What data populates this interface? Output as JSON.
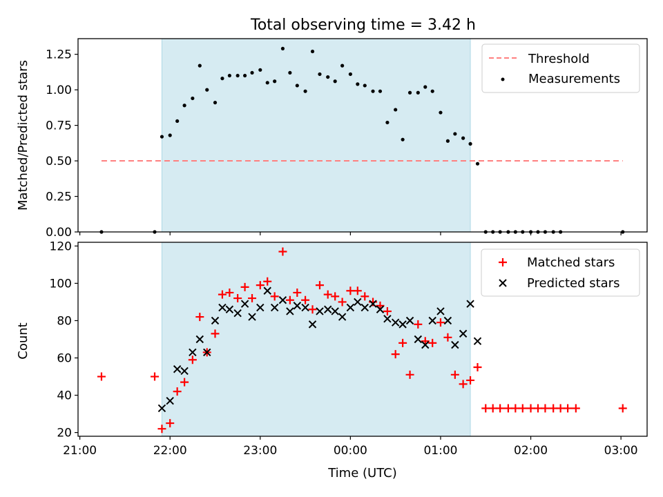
{
  "chart_data": {
    "title": "Total observing time = 3.42 h",
    "xlabel": "Time (UTC)",
    "x_unit": "hours since 21:00 UTC (x tick labels are clock times)",
    "xlim": [
      -0.02,
      6.29
    ],
    "xticks": [
      0,
      1,
      2,
      3,
      4,
      5,
      6
    ],
    "xtick_labels": [
      "21:00",
      "22:00",
      "23:00",
      "00:00",
      "01:00",
      "02:00",
      "03:00"
    ],
    "observing_window": [
      0.91,
      4.33
    ],
    "panels": [
      {
        "type": "scatter",
        "ylabel": "Matched/Predicted stars",
        "ylim": [
          0,
          1.36
        ],
        "yticks": [
          0,
          0.25,
          0.5,
          0.75,
          1.0,
          1.25
        ],
        "ytick_labels": [
          "0.00",
          "0.25",
          "0.50",
          "0.75",
          "1.00",
          "1.25"
        ],
        "legend_position": "top-right",
        "threshold": {
          "name": "Threshold",
          "y": 0.5,
          "x_range": [
            0.24,
            6.02
          ],
          "color": "#ff7f7f"
        },
        "series": [
          {
            "name": "Measurements",
            "color": "#000000",
            "points": [
              [
                0.24,
                0.0
              ],
              [
                0.83,
                0.0
              ],
              [
                0.91,
                0.67
              ],
              [
                1.0,
                0.68
              ],
              [
                1.08,
                0.78
              ],
              [
                1.16,
                0.89
              ],
              [
                1.25,
                0.94
              ],
              [
                1.33,
                1.17
              ],
              [
                1.41,
                1.0
              ],
              [
                1.5,
                0.91
              ],
              [
                1.58,
                1.08
              ],
              [
                1.66,
                1.1
              ],
              [
                1.75,
                1.1
              ],
              [
                1.83,
                1.1
              ],
              [
                1.91,
                1.12
              ],
              [
                2.0,
                1.14
              ],
              [
                2.08,
                1.05
              ],
              [
                2.16,
                1.06
              ],
              [
                2.25,
                1.29
              ],
              [
                2.33,
                1.12
              ],
              [
                2.41,
                1.03
              ],
              [
                2.5,
                0.99
              ],
              [
                2.58,
                1.27
              ],
              [
                2.66,
                1.11
              ],
              [
                2.75,
                1.09
              ],
              [
                2.83,
                1.06
              ],
              [
                2.91,
                1.17
              ],
              [
                3.0,
                1.11
              ],
              [
                3.08,
                1.04
              ],
              [
                3.16,
                1.03
              ],
              [
                3.25,
                0.99
              ],
              [
                3.33,
                0.99
              ],
              [
                3.41,
                0.77
              ],
              [
                3.5,
                0.86
              ],
              [
                3.58,
                0.65
              ],
              [
                3.66,
                0.98
              ],
              [
                3.75,
                0.98
              ],
              [
                3.83,
                1.02
              ],
              [
                3.91,
                0.99
              ],
              [
                4.0,
                0.84
              ],
              [
                4.08,
                0.64
              ],
              [
                4.16,
                0.69
              ],
              [
                4.25,
                0.66
              ],
              [
                4.33,
                0.62
              ],
              [
                4.41,
                0.48
              ],
              [
                4.5,
                0.0
              ],
              [
                4.58,
                0.0
              ],
              [
                4.66,
                0.0
              ],
              [
                4.75,
                0.0
              ],
              [
                4.83,
                0.0
              ],
              [
                4.91,
                0.0
              ],
              [
                5.0,
                0.0
              ],
              [
                5.08,
                0.0
              ],
              [
                5.16,
                0.0
              ],
              [
                5.25,
                0.0
              ],
              [
                5.33,
                0.0
              ],
              [
                6.02,
                0.0
              ]
            ]
          }
        ]
      },
      {
        "type": "scatter",
        "ylabel": "Count",
        "ylim": [
          18,
          122
        ],
        "yticks": [
          20,
          40,
          60,
          80,
          100,
          120
        ],
        "ytick_labels": [
          "20",
          "40",
          "60",
          "80",
          "100",
          "120"
        ],
        "legend_position": "top-right",
        "series": [
          {
            "name": "Matched stars",
            "marker": "+",
            "color": "#ff0000",
            "points": [
              [
                0.24,
                50
              ],
              [
                0.83,
                50
              ],
              [
                0.91,
                22
              ],
              [
                1.0,
                25
              ],
              [
                1.08,
                42
              ],
              [
                1.16,
                47
              ],
              [
                1.25,
                59
              ],
              [
                1.33,
                82
              ],
              [
                1.41,
                63
              ],
              [
                1.5,
                73
              ],
              [
                1.58,
                94
              ],
              [
                1.66,
                95
              ],
              [
                1.75,
                92
              ],
              [
                1.83,
                98
              ],
              [
                1.91,
                92
              ],
              [
                2.0,
                99
              ],
              [
                2.08,
                101
              ],
              [
                2.16,
                93
              ],
              [
                2.25,
                117
              ],
              [
                2.33,
                91
              ],
              [
                2.41,
                95
              ],
              [
                2.5,
                91
              ],
              [
                2.58,
                86
              ],
              [
                2.66,
                99
              ],
              [
                2.75,
                94
              ],
              [
                2.83,
                93
              ],
              [
                2.91,
                90
              ],
              [
                3.0,
                96
              ],
              [
                3.08,
                96
              ],
              [
                3.16,
                93
              ],
              [
                3.25,
                90
              ],
              [
                3.33,
                88
              ],
              [
                3.41,
                85
              ],
              [
                3.5,
                62
              ],
              [
                3.58,
                68
              ],
              [
                3.66,
                51
              ],
              [
                3.75,
                78
              ],
              [
                3.83,
                69
              ],
              [
                3.91,
                68
              ],
              [
                4.0,
                79
              ],
              [
                4.08,
                71
              ],
              [
                4.16,
                51
              ],
              [
                4.25,
                46
              ],
              [
                4.33,
                48
              ],
              [
                4.41,
                55
              ],
              [
                4.5,
                33
              ],
              [
                4.58,
                33
              ],
              [
                4.66,
                33
              ],
              [
                4.75,
                33
              ],
              [
                4.83,
                33
              ],
              [
                4.91,
                33
              ],
              [
                5.0,
                33
              ],
              [
                5.08,
                33
              ],
              [
                5.16,
                33
              ],
              [
                5.25,
                33
              ],
              [
                5.33,
                33
              ],
              [
                5.41,
                33
              ],
              [
                5.5,
                33
              ],
              [
                6.02,
                33
              ]
            ]
          },
          {
            "name": "Predicted stars",
            "marker": "x",
            "color": "#000000",
            "points": [
              [
                0.91,
                33
              ],
              [
                1.0,
                37
              ],
              [
                1.08,
                54
              ],
              [
                1.16,
                53
              ],
              [
                1.25,
                63
              ],
              [
                1.33,
                70
              ],
              [
                1.41,
                63
              ],
              [
                1.5,
                80
              ],
              [
                1.58,
                87
              ],
              [
                1.66,
                86
              ],
              [
                1.75,
                84
              ],
              [
                1.83,
                89
              ],
              [
                1.91,
                82
              ],
              [
                2.0,
                87
              ],
              [
                2.08,
                96
              ],
              [
                2.16,
                87
              ],
              [
                2.25,
                91
              ],
              [
                2.33,
                85
              ],
              [
                2.41,
                88
              ],
              [
                2.5,
                87
              ],
              [
                2.58,
                78
              ],
              [
                2.66,
                85
              ],
              [
                2.75,
                86
              ],
              [
                2.83,
                85
              ],
              [
                2.91,
                82
              ],
              [
                3.0,
                87
              ],
              [
                3.08,
                90
              ],
              [
                3.16,
                87
              ],
              [
                3.25,
                89
              ],
              [
                3.33,
                86
              ],
              [
                3.41,
                81
              ],
              [
                3.5,
                79
              ],
              [
                3.58,
                78
              ],
              [
                3.66,
                80
              ],
              [
                3.75,
                70
              ],
              [
                3.83,
                67
              ],
              [
                3.91,
                80
              ],
              [
                4.0,
                85
              ],
              [
                4.08,
                80
              ],
              [
                4.16,
                67
              ],
              [
                4.25,
                73
              ],
              [
                4.33,
                89
              ],
              [
                4.41,
                69
              ]
            ]
          }
        ]
      }
    ]
  }
}
